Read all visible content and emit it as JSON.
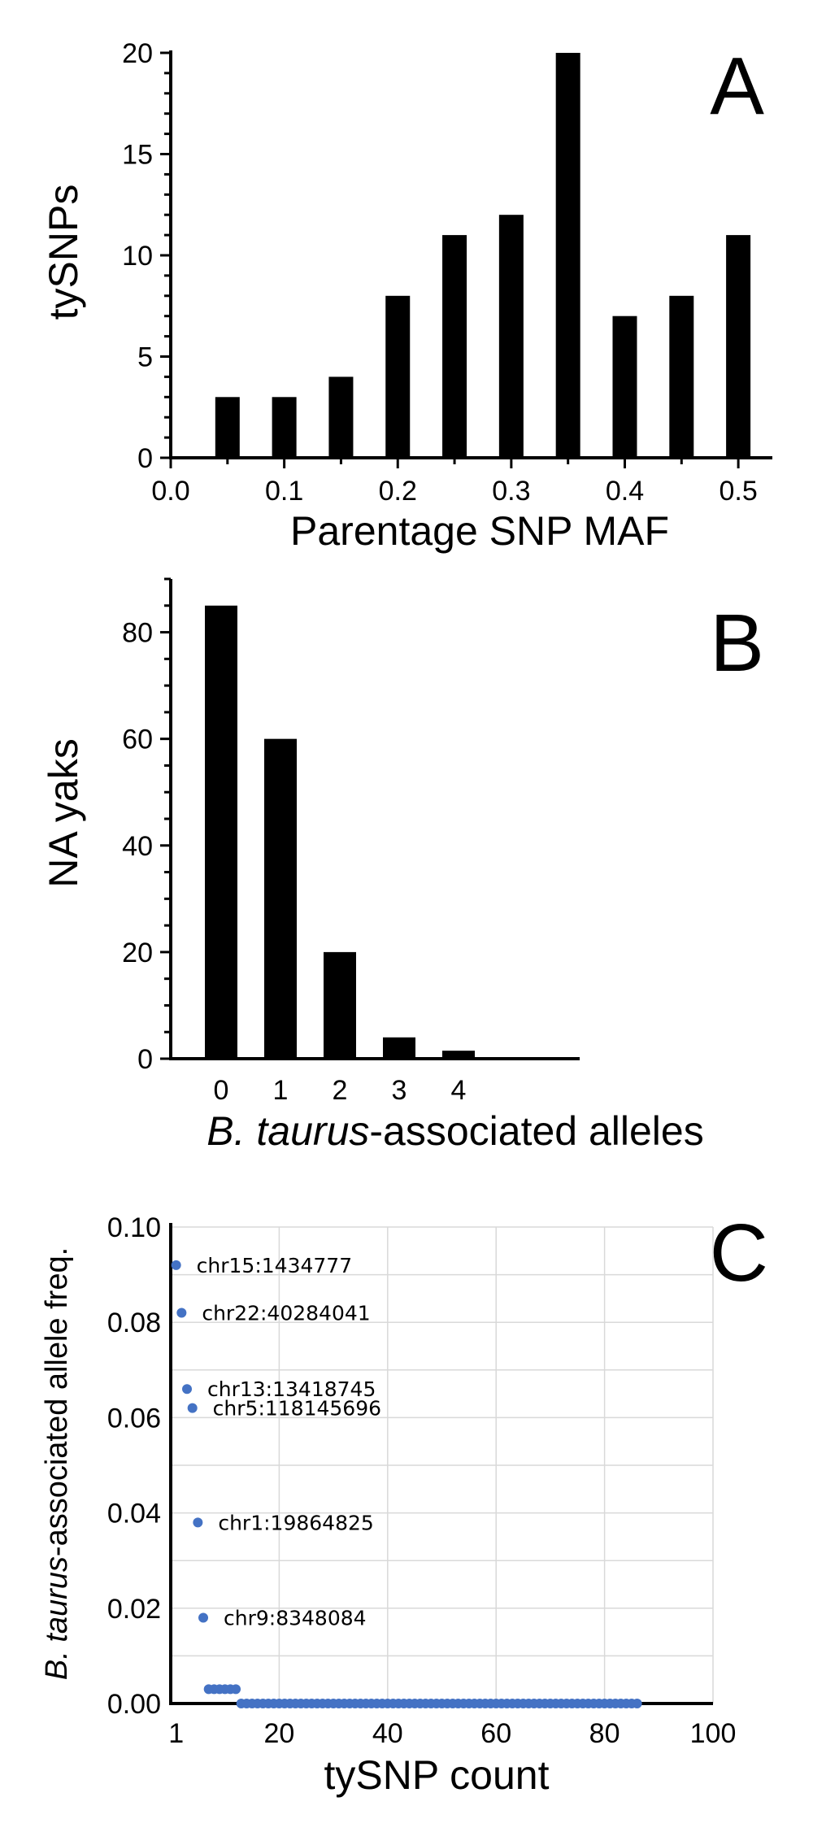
{
  "chart_data": [
    {
      "type": "bar",
      "panel_label": "A",
      "xlabel": "Parentage SNP MAF",
      "ylabel": "tySNPs",
      "x": [
        0.05,
        0.1,
        0.15,
        0.2,
        0.25,
        0.3,
        0.35,
        0.4,
        0.45,
        0.5
      ],
      "values": [
        3,
        3,
        4,
        8,
        11,
        12,
        20,
        7,
        8,
        11
      ],
      "xlim": [
        0.0,
        0.53
      ],
      "ylim": [
        0,
        20
      ],
      "xticks": [
        "0.0",
        "0.1",
        "0.2",
        "0.3",
        "0.4",
        "0.5"
      ],
      "yticks": [
        "0",
        "5",
        "10",
        "15",
        "20"
      ],
      "bar_color": "#000000"
    },
    {
      "type": "bar",
      "panel_label": "B",
      "xlabel_italic": "B. taurus",
      "xlabel_rest": "-associated alleles",
      "ylabel": "NA yaks",
      "categories": [
        "0",
        "1",
        "2",
        "3",
        "4"
      ],
      "values": [
        85,
        60,
        20,
        4,
        1.5
      ],
      "ylim": [
        0,
        90
      ],
      "yticks": [
        "0",
        "20",
        "40",
        "60",
        "80"
      ],
      "bar_color": "#000000"
    },
    {
      "type": "scatter",
      "panel_label": "C",
      "xlabel": "tySNP count",
      "ylabel_italic": "B. taurus",
      "ylabel_rest": "-associated allele freq.",
      "xlim": [
        0,
        100
      ],
      "ylim": [
        0,
        0.1
      ],
      "xticks": [
        "1",
        "20",
        "40",
        "60",
        "80",
        "100"
      ],
      "yticks": [
        "0.00",
        "0.02",
        "0.04",
        "0.06",
        "0.08",
        "0.10"
      ],
      "grid": true,
      "point_color": "#4472c4",
      "labeled_points": [
        {
          "x": 1,
          "y": 0.092,
          "label": "chr15:1434777"
        },
        {
          "x": 2,
          "y": 0.082,
          "label": "chr22:40284041"
        },
        {
          "x": 3,
          "y": 0.066,
          "label": "chr13:13418745"
        },
        {
          "x": 4,
          "y": 0.062,
          "label": "chr5:118145696"
        },
        {
          "x": 5,
          "y": 0.038,
          "label": "chr1:19864825"
        },
        {
          "x": 6,
          "y": 0.018,
          "label": "chr9:8348084"
        }
      ],
      "low_points": {
        "x_from": 7,
        "x_to": 12,
        "y": 0.003
      },
      "zero_points": {
        "x_from": 13,
        "x_to": 86,
        "y": 0.0
      }
    }
  ]
}
